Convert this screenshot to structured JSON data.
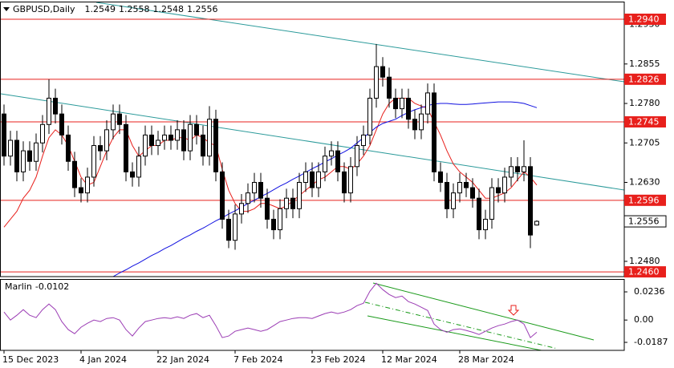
{
  "chart_data": {
    "type": "candlestick",
    "symbol": "GBPUSD,Daily",
    "categories": [
      "15 Dec 2023",
      null,
      null,
      null,
      null,
      null,
      null,
      null,
      null,
      null,
      null,
      null,
      "4 Jan 2024",
      null,
      null,
      null,
      null,
      null,
      null,
      null,
      null,
      null,
      null,
      null,
      "22 Jan 2024",
      null,
      null,
      null,
      null,
      null,
      null,
      null,
      null,
      null,
      null,
      null,
      "7 Feb 2024",
      null,
      null,
      null,
      null,
      null,
      null,
      null,
      null,
      null,
      null,
      null,
      "23 Feb 2024",
      null,
      null,
      null,
      null,
      null,
      null,
      null,
      null,
      null,
      null,
      "12 Mar 2024",
      null,
      null,
      null,
      null,
      null,
      null,
      null,
      null,
      null,
      null,
      null,
      "28 Mar 2024",
      null,
      null,
      null,
      null,
      null,
      null,
      null,
      null,
      null,
      null,
      null,
      null
    ],
    "open": [
      1.276,
      1.268,
      1.271,
      1.265,
      1.269,
      1.267,
      1.2705,
      1.274,
      1.279,
      1.276,
      1.272,
      1.267,
      1.262,
      1.261,
      1.264,
      1.27,
      1.269,
      1.273,
      1.276,
      1.274,
      1.265,
      1.264,
      1.268,
      1.272,
      1.27,
      1.271,
      1.272,
      1.271,
      1.273,
      1.269,
      1.274,
      1.272,
      1.268,
      1.275,
      1.265,
      1.256,
      1.252,
      1.257,
      1.259,
      1.261,
      1.263,
      1.26,
      1.256,
      1.254,
      1.258,
      1.26,
      1.258,
      1.263,
      1.265,
      1.262,
      1.265,
      1.268,
      1.269,
      1.265,
      1.261,
      1.266,
      1.27,
      1.272,
      1.279,
      1.285,
      1.283,
      1.279,
      1.277,
      1.279,
      1.275,
      1.273,
      1.276,
      1.28,
      1.265,
      1.263,
      1.258,
      1.261,
      1.263,
      1.262,
      1.26,
      1.254,
      1.256,
      1.262,
      1.261,
      1.264,
      1.266,
      1.265,
      1.266,
      1.2549
    ],
    "high": [
      1.2778,
      1.2728,
      1.2728,
      1.2708,
      1.2708,
      1.2723,
      1.2758,
      1.2826,
      1.2808,
      1.2778,
      1.2738,
      1.2688,
      1.2638,
      1.2658,
      1.2718,
      1.2718,
      1.2748,
      1.2778,
      1.2778,
      1.2758,
      1.2668,
      1.2698,
      1.2738,
      1.2738,
      1.2728,
      1.2738,
      1.2738,
      1.2748,
      1.2748,
      1.2758,
      1.2758,
      1.2738,
      1.2775,
      1.2768,
      1.2668,
      1.2578,
      1.2588,
      1.2608,
      1.2628,
      1.2648,
      1.2648,
      1.2618,
      1.2578,
      1.2598,
      1.2618,
      1.2618,
      1.2648,
      1.2668,
      1.2668,
      1.2668,
      1.2698,
      1.2708,
      1.2708,
      1.2668,
      1.2678,
      1.2718,
      1.2738,
      1.2808,
      1.2893,
      1.2868,
      1.2848,
      1.2808,
      1.2808,
      1.2808,
      1.2768,
      1.2778,
      1.2818,
      1.2818,
      1.2668,
      1.2648,
      1.2628,
      1.2648,
      1.2648,
      1.2638,
      1.2618,
      1.2578,
      1.2638,
      1.2638,
      1.2658,
      1.2678,
      1.2678,
      1.271,
      1.2678,
      1.2558
    ],
    "low": [
      1.2662,
      1.2662,
      1.2632,
      1.2632,
      1.2652,
      1.2652,
      1.2687,
      1.2722,
      1.2742,
      1.2702,
      1.2652,
      1.2602,
      1.2592,
      1.2592,
      1.2622,
      1.2672,
      1.2672,
      1.2712,
      1.2722,
      1.2632,
      1.2622,
      1.2622,
      1.2662,
      1.2682,
      1.2682,
      1.2692,
      1.2692,
      1.2692,
      1.2672,
      1.2672,
      1.2702,
      1.2662,
      1.2662,
      1.2632,
      1.2542,
      1.2505,
      1.2502,
      1.2552,
      1.2572,
      1.2592,
      1.2582,
      1.2542,
      1.2522,
      1.2522,
      1.2562,
      1.2562,
      1.2562,
      1.2612,
      1.2602,
      1.2602,
      1.2632,
      1.2662,
      1.2632,
      1.2592,
      1.2592,
      1.2642,
      1.2682,
      1.2702,
      1.2772,
      1.2812,
      1.2772,
      1.2752,
      1.2752,
      1.2732,
      1.2712,
      1.2712,
      1.2742,
      1.2632,
      1.2612,
      1.2562,
      1.2562,
      1.2592,
      1.2602,
      1.2582,
      1.2522,
      1.2522,
      1.2542,
      1.2592,
      1.2592,
      1.2622,
      1.2632,
      1.2632,
      1.2505,
      1.2548
    ],
    "close": [
      1.268,
      1.271,
      1.265,
      1.269,
      1.267,
      1.2705,
      1.274,
      1.279,
      1.276,
      1.272,
      1.267,
      1.262,
      1.261,
      1.264,
      1.27,
      1.269,
      1.273,
      1.276,
      1.274,
      1.265,
      1.264,
      1.268,
      1.272,
      1.27,
      1.271,
      1.272,
      1.271,
      1.273,
      1.269,
      1.274,
      1.272,
      1.268,
      1.275,
      1.265,
      1.256,
      1.252,
      1.257,
      1.259,
      1.261,
      1.263,
      1.26,
      1.256,
      1.254,
      1.258,
      1.26,
      1.258,
      1.263,
      1.265,
      1.262,
      1.265,
      1.268,
      1.269,
      1.265,
      1.261,
      1.266,
      1.27,
      1.272,
      1.279,
      1.285,
      1.283,
      1.279,
      1.277,
      1.279,
      1.275,
      1.273,
      1.276,
      1.28,
      1.265,
      1.263,
      1.258,
      1.261,
      1.263,
      1.262,
      1.26,
      1.254,
      1.256,
      1.262,
      1.261,
      1.264,
      1.266,
      1.265,
      1.266,
      1.253,
      1.2556
    ],
    "bull_color": "#ffffff",
    "bear_color": "#000000",
    "lines": [
      {
        "color": "#e8201c",
        "values": [
          1.2545,
          1.256,
          1.2575,
          1.26,
          1.2615,
          1.264,
          1.268,
          1.2715,
          1.273,
          1.272,
          1.27,
          1.267,
          1.264,
          1.2625,
          1.263,
          1.266,
          1.269,
          1.2715,
          1.273,
          1.273,
          1.27,
          1.268,
          1.269,
          1.27,
          1.27,
          1.271,
          1.271,
          1.2715,
          1.2715,
          1.271,
          1.272,
          1.2715,
          1.2705,
          1.27,
          1.2655,
          1.2615,
          1.259,
          1.2575,
          1.2575,
          1.258,
          1.259,
          1.259,
          1.2585,
          1.258,
          1.2585,
          1.2595,
          1.2605,
          1.2615,
          1.2625,
          1.2635,
          1.264,
          1.265,
          1.266,
          1.266,
          1.2655,
          1.2665,
          1.268,
          1.27,
          1.273,
          1.276,
          1.278,
          1.279,
          1.279,
          1.279,
          1.278,
          1.2775,
          1.277,
          1.2745,
          1.272,
          1.269,
          1.2665,
          1.265,
          1.264,
          1.263,
          1.2615,
          1.26,
          1.26,
          1.2605,
          1.261,
          1.262,
          1.2635,
          1.265,
          1.264,
          1.2625
        ]
      },
      {
        "color": "#1010e0",
        "values": [
          null,
          null,
          null,
          null,
          null,
          null,
          null,
          null,
          null,
          null,
          null,
          null,
          null,
          null,
          null,
          null,
          null,
          1.2451,
          1.2458,
          1.2464,
          1.2471,
          1.2477,
          1.2484,
          1.2491,
          1.2497,
          1.2504,
          1.251,
          1.2517,
          1.2524,
          1.253,
          1.2537,
          1.2543,
          1.255,
          1.2557,
          1.2563,
          1.257,
          1.2576,
          1.2583,
          1.259,
          1.2596,
          1.2603,
          1.2609,
          1.2616,
          1.2623,
          1.2629,
          1.2636,
          1.2642,
          1.2649,
          1.2656,
          1.2662,
          1.2669,
          1.2675,
          1.2682,
          1.2688,
          1.2695,
          1.2705,
          1.2715,
          1.2725,
          1.2735,
          1.2742,
          1.2746,
          1.275,
          1.2757,
          1.2763,
          1.2768,
          1.2772,
          1.2776,
          1.2779,
          1.278,
          1.278,
          1.2779,
          1.2778,
          1.2778,
          1.2779,
          1.278,
          1.2781,
          1.2782,
          1.2783,
          1.2783,
          1.2783,
          1.2782,
          1.278,
          1.2776,
          1.2772
        ]
      }
    ],
    "levels": [
      {
        "value": 1.294,
        "label": "1.2940"
      },
      {
        "value": 1.2826,
        "label": "1.2826"
      },
      {
        "value": 1.2745,
        "label": "1.2745"
      },
      {
        "value": 1.2596,
        "label": "1.2596"
      },
      {
        "value": 1.246,
        "label": "1.2460"
      }
    ],
    "level_color": "#e8201c",
    "ylim": [
      1.2451,
      1.2972
    ],
    "yticks": [
      {
        "value": 1.248,
        "label": "1.2480"
      },
      {
        "value": 1.263,
        "label": "1.2630"
      },
      1.2705,
      {
        "value": 1.278,
        "label": "1.2780"
      },
      1.2855,
      {
        "value": 1.293,
        "label": "1.2930"
      }
    ],
    "indicator": {
      "name": "Marlin",
      "color": "#9b3cb4",
      "values": [
        0.0067,
        0,
        0.004,
        0.0087,
        0.004,
        0.002,
        0.0087,
        0.0134,
        0.0087,
        -0.0013,
        -0.008,
        -0.0114,
        -0.006,
        -0.0027,
        0,
        -0.0013,
        0.0013,
        0.002,
        0,
        -0.008,
        -0.0134,
        -0.0067,
        -0.0013,
        0,
        0.0013,
        0.002,
        0.0013,
        0.0027,
        0.0013,
        0.004,
        0.0054,
        0.002,
        0.004,
        -0.0047,
        -0.0147,
        -0.0134,
        -0.0094,
        -0.008,
        -0.0067,
        -0.008,
        -0.0094,
        -0.008,
        -0.0047,
        -0.0013,
        0,
        0.0013,
        0.002,
        0.002,
        0.0013,
        0.0034,
        0.0054,
        0.0067,
        0.0054,
        0.0067,
        0.0087,
        0.0121,
        0.0141,
        0.0241,
        0.0308,
        0.0255,
        0.0214,
        0.0188,
        0.0201,
        0.0154,
        0.0134,
        0.0107,
        0.008,
        -0.0034,
        -0.008,
        -0.0102,
        -0.008,
        -0.0074,
        -0.0087,
        -0.0102,
        -0.0121,
        -0.0094,
        -0.0067,
        -0.0047,
        -0.0034,
        -0.0013,
        0,
        -0.0034,
        -0.0147,
        -0.0102
      ],
      "ylim": [
        -0.0254,
        0.0337
      ],
      "yticks": [
        0.0236,
        {
          "value": 0,
          "label": "0.00"
        },
        -0.0187
      ]
    }
  }
}
